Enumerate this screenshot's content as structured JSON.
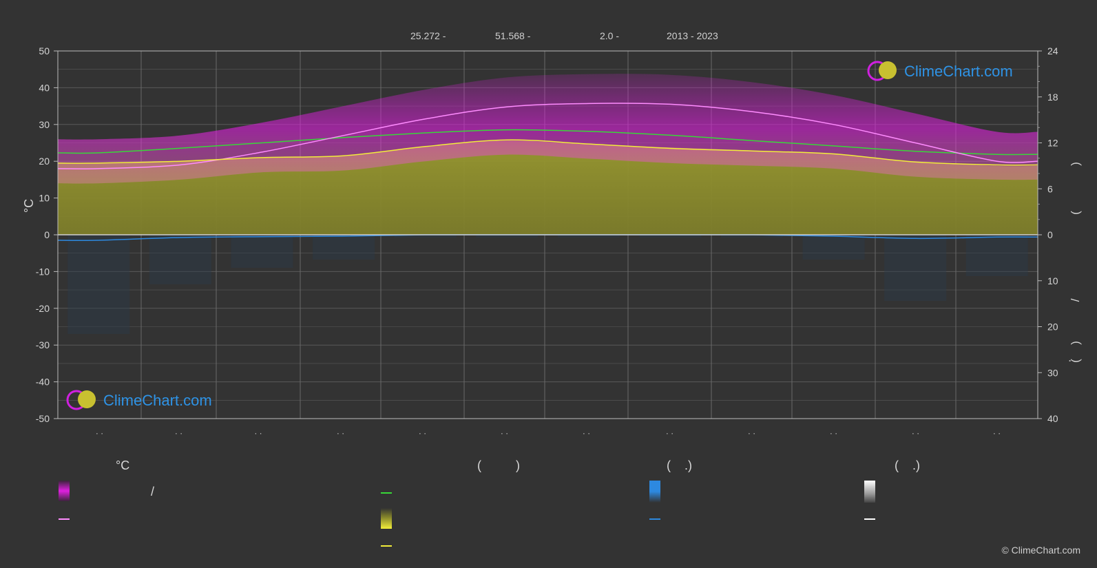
{
  "header": {
    "latitude": "25.272 -",
    "longitude": "51.568 -",
    "elevation": "2.0 -",
    "years": "2013 - 2023"
  },
  "logo_text": "ClimeChart.com",
  "copyright": "© ClimeChart.com",
  "chart_data": {
    "type": "area",
    "y_left": {
      "label": "°C",
      "range": [
        -50,
        50
      ],
      "ticks": [
        50,
        40,
        30,
        20,
        10,
        0,
        -10,
        -20,
        -30,
        -40,
        -50
      ]
    },
    "y_right_top": {
      "range": [
        0,
        24
      ],
      "ticks": [
        24,
        18,
        12,
        6,
        0
      ]
    },
    "y_right_bottom": {
      "range": [
        0,
        40
      ],
      "ticks": [
        10,
        20,
        30,
        40
      ]
    },
    "right_axis_glyphs": [
      ")",
      "(",
      "/",
      ")",
      "(",
      "·"
    ],
    "month_tick_labels": [
      "· ·",
      "· ·",
      "· ·",
      "· ·",
      "· ·",
      "· ·",
      "· ·",
      "· ·",
      "· ·",
      "· ·",
      "· ·",
      "· ·"
    ],
    "grid": true,
    "x_months": [
      0.5,
      1.5,
      2.5,
      3.5,
      4.5,
      5.5,
      6.5,
      7.5,
      8.5,
      9.5,
      10.5,
      11.5
    ],
    "series": [
      {
        "key": "max_temp",
        "values": [
          18.0,
          19.0,
          22.5,
          27.0,
          31.5,
          34.8,
          35.7,
          35.5,
          33.5,
          30.0,
          25.0,
          20.0
        ]
      },
      {
        "key": "mean_temp",
        "values": [
          19.5,
          20.0,
          21.0,
          21.5,
          24.0,
          25.8,
          24.7,
          23.5,
          22.8,
          22.0,
          19.8,
          19.0
        ]
      },
      {
        "key": "daylight_hours",
        "values": [
          10.7,
          11.3,
          12.0,
          12.7,
          13.3,
          13.7,
          13.5,
          13.0,
          12.3,
          11.6,
          10.9,
          10.5
        ]
      },
      {
        "key": "sunshine_hours",
        "values": [
          9.4,
          9.6,
          10.1,
          10.3,
          11.5,
          12.3,
          11.8,
          11.4,
          11.0,
          10.6,
          9.5,
          9.0
        ]
      },
      {
        "key": "precipitation_mm",
        "values": [
          1.2,
          0.6,
          0.4,
          0.3,
          0.0,
          0.0,
          0.0,
          0.0,
          0.0,
          0.3,
          0.8,
          0.5
        ]
      }
    ]
  },
  "legend": {
    "col1_head": "°C",
    "col1_slash": "/",
    "col2_head": "(          )",
    "col3_head": "(    .)",
    "col4_head": "(    .)"
  },
  "colors": {
    "background": "#333333",
    "grid": "#5a5a5a",
    "max_line": "#ff8cff",
    "temp_band": "#e020e0",
    "mean_line": "#f2ee3a",
    "sunshine_fill": "#8c8c2e",
    "daylight_line": "#38d838",
    "precip_line": "#2d89e0",
    "logo_text": "#2e93e6"
  }
}
